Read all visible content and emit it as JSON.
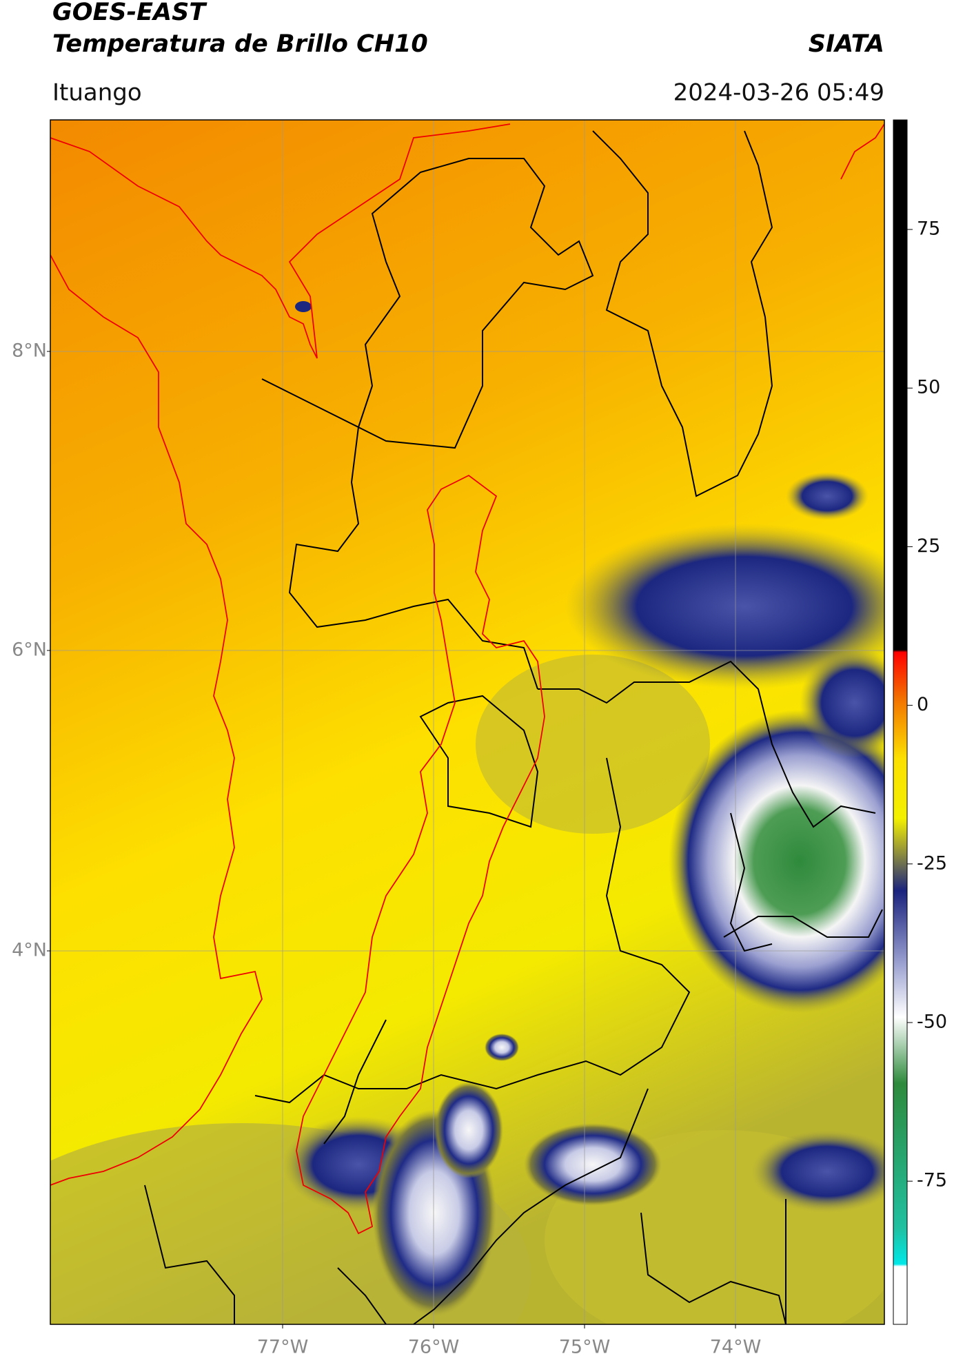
{
  "header": {
    "title": "GOES-EAST",
    "subtitle": "Temperatura de Brillo CH10",
    "source": "SIATA",
    "location": "Ituango",
    "timestamp": "2024-03-26 05:49"
  },
  "map": {
    "lat_labels": [
      "8°N",
      "6°N",
      "4°N"
    ],
    "lon_labels": [
      "77°W",
      "76°W",
      "75°W",
      "74°W"
    ]
  },
  "colorbar": {
    "labels": [
      "75",
      "50",
      "25",
      "0",
      "-25",
      "-50",
      "-75"
    ]
  }
}
